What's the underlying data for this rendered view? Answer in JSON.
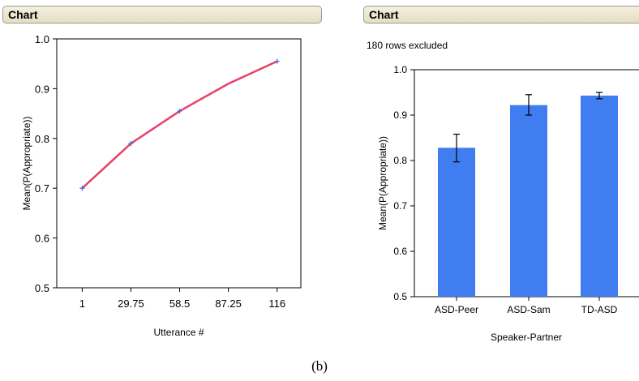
{
  "panels": [
    {
      "header": "Chart"
    },
    {
      "header": "Chart",
      "note": "180 rows excluded"
    }
  ],
  "caption": "(b)",
  "chart_data": [
    {
      "type": "line",
      "x": [
        1,
        29.75,
        58.5,
        87.25,
        116
      ],
      "values": [
        0.7,
        0.79,
        0.855,
        0.91,
        0.955
      ],
      "markers": [
        {
          "x": 1,
          "y": 0.7
        },
        {
          "x": 29.75,
          "y": 0.79
        },
        {
          "x": 58.5,
          "y": 0.855
        },
        {
          "x": 116,
          "y": 0.955
        }
      ],
      "xticks": [
        "1",
        "29.75",
        "58.5",
        "87.25",
        "116"
      ],
      "yticks": [
        "0.5",
        "0.6",
        "0.7",
        "0.8",
        "0.9",
        "1.0"
      ],
      "xlabel": "Utterance #",
      "ylabel": "Mean(P(Appropriate))",
      "xlim": [
        -14,
        130
      ],
      "ylim": [
        0.5,
        1.0
      ],
      "line_color": "#e8406a",
      "marker_color": "#4a6fd8"
    },
    {
      "type": "bar",
      "categories": [
        "ASD-Peer",
        "ASD-Sam",
        "TD-ASD"
      ],
      "values": [
        0.828,
        0.922,
        0.943
      ],
      "err_low": [
        0.797,
        0.9,
        0.936
      ],
      "err_high": [
        0.858,
        0.945,
        0.95
      ],
      "yticks": [
        "0.5",
        "0.6",
        "0.7",
        "0.8",
        "0.9",
        "1.0"
      ],
      "xlabel": "Speaker-Partner",
      "ylabel": "Mean(P(Appropriate))",
      "ylim": [
        0.5,
        1.0
      ],
      "bar_color": "#3f7df0"
    }
  ]
}
